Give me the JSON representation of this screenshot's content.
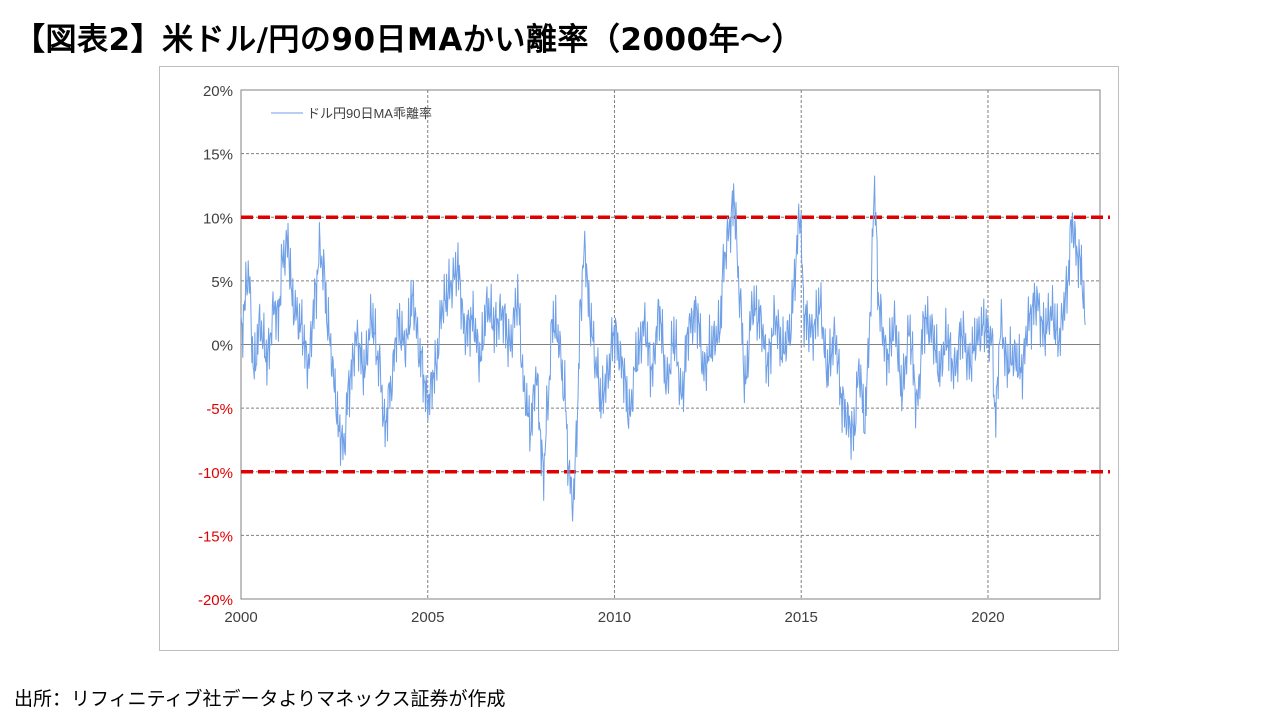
{
  "title": "【図表2】米ドル/円の90日MAかい離率（2000年～）",
  "source": "出所：リフィニティブ社データよりマネックス証券が作成",
  "chart_data": {
    "type": "line",
    "legend": "top-left",
    "grid": true,
    "xlim": [
      2000,
      2023
    ],
    "ylim": [
      -20,
      20
    ],
    "x_ticks": [
      2000,
      2005,
      2010,
      2015,
      2020
    ],
    "y_ticks": [
      20,
      15,
      10,
      5,
      0,
      -5,
      -10,
      -15,
      -20
    ],
    "y_tick_labels": [
      "20%",
      "15%",
      "10%",
      "5%",
      "0%",
      "-5%",
      "-10%",
      "-15%",
      "-20%"
    ],
    "negative_tick_color": "#e00000",
    "series": [
      {
        "name": "ドル円90日MA乖離率",
        "color": "#6f9fe6",
        "x": [
          2000.0,
          2000.2,
          2000.35,
          2000.5,
          2000.7,
          2000.9,
          2001.0,
          2001.1,
          2001.25,
          2001.4,
          2001.6,
          2001.8,
          2002.0,
          2002.1,
          2002.2,
          2002.35,
          2002.5,
          2002.6,
          2002.75,
          2002.9,
          2003.1,
          2003.3,
          2003.5,
          2003.7,
          2003.85,
          2004.0,
          2004.2,
          2004.4,
          2004.6,
          2004.8,
          2005.0,
          2005.2,
          2005.4,
          2005.6,
          2005.8,
          2006.0,
          2006.2,
          2006.4,
          2006.6,
          2006.8,
          2007.0,
          2007.2,
          2007.4,
          2007.6,
          2007.75,
          2007.9,
          2008.1,
          2008.2,
          2008.35,
          2008.5,
          2008.65,
          2008.8,
          2008.9,
          2009.0,
          2009.1,
          2009.2,
          2009.35,
          2009.5,
          2009.65,
          2009.8,
          2010.0,
          2010.2,
          2010.4,
          2010.6,
          2010.8,
          2011.0,
          2011.2,
          2011.4,
          2011.6,
          2011.8,
          2012.0,
          2012.2,
          2012.4,
          2012.6,
          2012.8,
          2012.95,
          2013.1,
          2013.2,
          2013.35,
          2013.5,
          2013.7,
          2013.9,
          2014.1,
          2014.3,
          2014.5,
          2014.7,
          2014.85,
          2014.95,
          2015.1,
          2015.3,
          2015.5,
          2015.7,
          2015.9,
          2016.1,
          2016.25,
          2016.4,
          2016.55,
          2016.7,
          2016.85,
          2016.95,
          2017.1,
          2017.3,
          2017.5,
          2017.7,
          2017.9,
          2018.1,
          2018.3,
          2018.5,
          2018.7,
          2018.9,
          2019.1,
          2019.3,
          2019.5,
          2019.7,
          2019.9,
          2020.1,
          2020.2,
          2020.35,
          2020.5,
          2020.7,
          2020.9,
          2021.1,
          2021.3,
          2021.5,
          2021.7,
          2021.9,
          2022.1,
          2022.25,
          2022.4,
          2022.5,
          2022.6
        ],
        "y": [
          1.0,
          5.5,
          -2.0,
          1.5,
          -1.0,
          3.0,
          2.0,
          6.5,
          8.0,
          3.0,
          1.5,
          -1.5,
          4.0,
          7.5,
          6.0,
          1.0,
          -3.0,
          -6.5,
          -8.0,
          -3.0,
          0.5,
          -2.0,
          2.0,
          -1.5,
          -6.5,
          -3.5,
          1.5,
          0.0,
          3.5,
          -1.0,
          -4.5,
          -2.0,
          3.0,
          4.5,
          6.0,
          1.0,
          2.0,
          -1.0,
          3.0,
          1.5,
          2.5,
          0.0,
          3.5,
          -4.0,
          -6.5,
          -2.5,
          -10.0,
          -5.0,
          2.0,
          0.5,
          -3.5,
          -10.5,
          -12.5,
          -6.0,
          3.5,
          7.5,
          2.0,
          -1.5,
          -4.5,
          -2.5,
          1.0,
          -1.5,
          -5.5,
          -1.0,
          1.5,
          -2.0,
          2.5,
          -3.0,
          0.5,
          -4.0,
          1.5,
          2.5,
          -2.0,
          0.0,
          1.0,
          7.0,
          9.5,
          11.5,
          4.0,
          -3.0,
          3.0,
          2.0,
          -1.5,
          2.0,
          -0.5,
          1.0,
          6.0,
          10.5,
          2.0,
          1.0,
          3.0,
          -2.0,
          0.5,
          -4.5,
          -6.0,
          -7.0,
          -2.0,
          -6.0,
          2.0,
          12.0,
          2.5,
          -1.0,
          1.5,
          -3.5,
          1.0,
          -4.5,
          2.0,
          1.0,
          -2.0,
          0.5,
          -2.0,
          1.0,
          -1.5,
          0.5,
          1.5,
          0.5,
          -5.5,
          1.5,
          -1.5,
          -1.0,
          -2.0,
          2.0,
          3.5,
          1.0,
          2.5,
          0.5,
          4.0,
          9.5,
          7.0,
          6.0,
          2.0
        ]
      }
    ],
    "reference_lines": [
      {
        "y": 10,
        "color": "#e00000",
        "style": "dashed"
      },
      {
        "y": -10,
        "color": "#e00000",
        "style": "dashed"
      }
    ]
  }
}
